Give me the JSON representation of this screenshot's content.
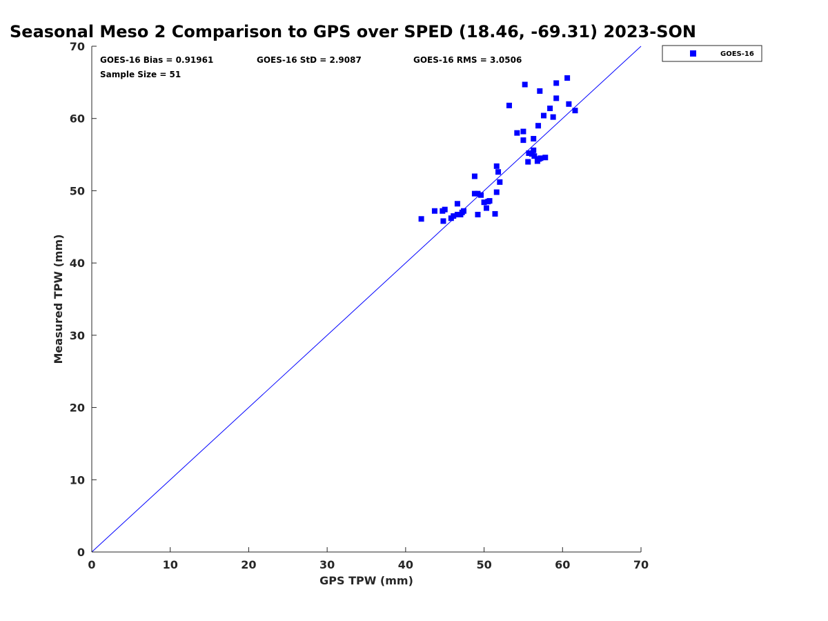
{
  "chart_data": {
    "type": "scatter",
    "title": "Seasonal Meso 2 Comparison to GPS over SPED (18.46, -69.31) 2023-SON",
    "xlabel": "GPS TPW (mm)",
    "ylabel": "Measured TPW (mm)",
    "xlim": [
      0,
      70
    ],
    "ylim": [
      0,
      70
    ],
    "xticks": [
      0,
      10,
      20,
      30,
      40,
      50,
      60,
      70
    ],
    "yticks": [
      0,
      10,
      20,
      30,
      40,
      50,
      60,
      70
    ],
    "grid": false,
    "legend_position": "outside-top-right",
    "reference_line": {
      "type": "one-to-one",
      "from": [
        0,
        0
      ],
      "to": [
        70,
        70
      ],
      "color": "#0000ff"
    },
    "stats": {
      "bias": "GOES-16 Bias = 0.91961",
      "std": "GOES-16 StD = 2.9087",
      "rms": "GOES-16 RMS = 3.0506",
      "sample_size": "Sample Size = 51"
    },
    "series": [
      {
        "name": "GOES-16",
        "color": "#0000ff",
        "marker": "square",
        "points": [
          [
            42.0,
            46.1
          ],
          [
            43.7,
            47.2
          ],
          [
            44.7,
            47.2
          ],
          [
            45.0,
            47.4
          ],
          [
            44.8,
            45.8
          ],
          [
            45.8,
            46.2
          ],
          [
            46.1,
            46.5
          ],
          [
            46.6,
            48.2
          ],
          [
            46.6,
            46.7
          ],
          [
            47.0,
            46.7
          ],
          [
            47.2,
            47.0
          ],
          [
            47.4,
            47.2
          ],
          [
            48.8,
            49.6
          ],
          [
            48.8,
            52.0
          ],
          [
            49.2,
            49.6
          ],
          [
            49.2,
            46.7
          ],
          [
            49.6,
            49.4
          ],
          [
            50.0,
            48.4
          ],
          [
            50.3,
            47.6
          ],
          [
            50.5,
            48.5
          ],
          [
            50.7,
            48.6
          ],
          [
            51.4,
            46.8
          ],
          [
            51.6,
            49.8
          ],
          [
            51.6,
            53.4
          ],
          [
            51.8,
            52.6
          ],
          [
            52.0,
            51.2
          ],
          [
            53.2,
            61.8
          ],
          [
            54.2,
            58.0
          ],
          [
            55.0,
            58.2
          ],
          [
            55.0,
            57.0
          ],
          [
            55.2,
            64.7
          ],
          [
            55.6,
            54.0
          ],
          [
            55.7,
            55.2
          ],
          [
            56.1,
            55.1
          ],
          [
            56.3,
            57.2
          ],
          [
            56.3,
            55.6
          ],
          [
            56.4,
            54.8
          ],
          [
            56.8,
            54.1
          ],
          [
            56.9,
            59.0
          ],
          [
            57.0,
            54.4
          ],
          [
            57.1,
            63.8
          ],
          [
            57.2,
            54.5
          ],
          [
            57.6,
            60.4
          ],
          [
            57.8,
            54.6
          ],
          [
            58.4,
            61.4
          ],
          [
            58.8,
            60.2
          ],
          [
            59.2,
            64.9
          ],
          [
            59.2,
            62.8
          ],
          [
            60.6,
            65.6
          ],
          [
            60.8,
            62.0
          ],
          [
            61.6,
            61.1
          ]
        ]
      }
    ]
  }
}
